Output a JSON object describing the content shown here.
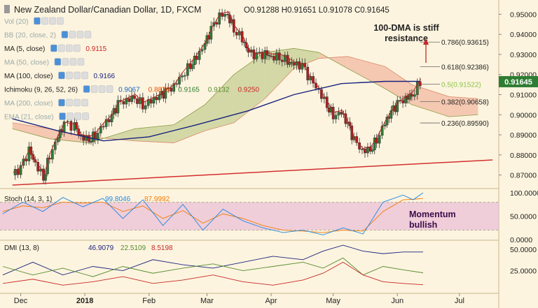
{
  "header": {
    "title": "New Zealand Dollar/Canadian Dollar, 1D, FXCM",
    "ohlc": "O0.91288  H0.91651  L0.91078  C0.91645"
  },
  "indicators": [
    {
      "label": "Vol (20)",
      "values": [],
      "faded": true
    },
    {
      "label": "BB (20, close, 2)",
      "values": [],
      "faded": true
    },
    {
      "label": "MA (5, close)",
      "values": [
        {
          "text": "0.9115",
          "color": "#c62828"
        }
      ],
      "faded": false
    },
    {
      "label": "MA (50, close)",
      "values": [],
      "faded": true
    },
    {
      "label": "MA (100, close)",
      "values": [
        {
          "text": "0.9166",
          "color": "#1a237e"
        }
      ],
      "faded": false
    },
    {
      "label": "Ichimoku (9, 26, 52, 26)",
      "values": [
        {
          "text": "0.9067",
          "color": "#1565c0"
        },
        {
          "text": "0.8876",
          "color": "#e65100"
        },
        {
          "text": "0.9165",
          "color": "#2e7d32"
        },
        {
          "text": "0.9132",
          "color": "#558b2f"
        },
        {
          "text": "0.9250",
          "color": "#c62828"
        }
      ],
      "faded": false
    },
    {
      "label": "MA (200, close)",
      "values": [],
      "faded": true
    },
    {
      "label": "EMA (21, close)",
      "values": [],
      "faded": true
    }
  ],
  "annotations": {
    "resistance_note": "100-DMA is stiff resistance",
    "momentum_note": "Momentum bullish"
  },
  "price_axis": {
    "ticks": [
      "0.95000",
      "0.94000",
      "0.93000",
      "0.92000",
      "0.91000",
      "0.90000",
      "0.89000",
      "0.88000",
      "0.87000"
    ],
    "current_price": "0.91645"
  },
  "x_axis": {
    "labels": [
      "Dec",
      "2018",
      "Feb",
      "Mar",
      "Apr",
      "May",
      "Jun",
      "Jul"
    ]
  },
  "stoch": {
    "label": "Stoch (14, 3, 1)",
    "k_value": "99.8046",
    "d_value": "87.9992",
    "ticks": [
      "100.0000",
      "50.0000",
      "0.0000"
    ]
  },
  "dmi": {
    "label": "DMI (13, 8)",
    "plus_value": "46.9079",
    "minus_value": "22.5109",
    "adx_value": "8.5198",
    "ticks": [
      "50.0000",
      "25.0000"
    ]
  },
  "colors": {
    "background": "#fdf4df",
    "up_candle": "#2e7d32",
    "down_candle": "#b71c1c",
    "ma100": "#1a237e",
    "ma5": "#b71c1c",
    "cloud_bull": "#c5cf94",
    "cloud_bear": "#f2b9a2",
    "trendline": "#d32f2f",
    "stoch_band": "#e8bcd6",
    "price_tag": "#2e7d32"
  },
  "chart_data": {
    "type": "candlestick",
    "title": "New Zealand Dollar/Canadian Dollar, 1D, FXCM",
    "ylim": [
      0.865,
      0.955
    ],
    "months": [
      "Dec",
      "2018",
      "Feb",
      "Mar",
      "Apr",
      "May",
      "Jun",
      "Jul"
    ],
    "close_path": [
      [
        "2017-11-27",
        0.87
      ],
      [
        "2017-12-01",
        0.873
      ],
      [
        "2017-12-05",
        0.882
      ],
      [
        "2017-12-08",
        0.876
      ],
      [
        "2017-12-12",
        0.869
      ],
      [
        "2017-12-15",
        0.88
      ],
      [
        "2017-12-19",
        0.889
      ],
      [
        "2017-12-22",
        0.895
      ],
      [
        "2017-12-27",
        0.894
      ],
      [
        "2017-12-30",
        0.889
      ],
      [
        "2018-01-03",
        0.888
      ],
      [
        "2018-01-06",
        0.89
      ],
      [
        "2018-01-10",
        0.895
      ],
      [
        "2018-01-14",
        0.899
      ],
      [
        "2018-01-17",
        0.905
      ],
      [
        "2018-01-21",
        0.907
      ],
      [
        "2018-01-25",
        0.909
      ],
      [
        "2018-01-29",
        0.905
      ],
      [
        "2018-02-02",
        0.907
      ],
      [
        "2018-02-06",
        0.909
      ],
      [
        "2018-02-09",
        0.911
      ],
      [
        "2018-02-13",
        0.914
      ],
      [
        "2018-02-17",
        0.92
      ],
      [
        "2018-02-21",
        0.925
      ],
      [
        "2018-02-24",
        0.929
      ],
      [
        "2018-02-28",
        0.935
      ],
      [
        "2018-03-03",
        0.942
      ],
      [
        "2018-03-07",
        0.949
      ],
      [
        "2018-03-11",
        0.95
      ],
      [
        "2018-03-14",
        0.943
      ],
      [
        "2018-03-18",
        0.938
      ],
      [
        "2018-03-21",
        0.931
      ],
      [
        "2018-03-25",
        0.929
      ],
      [
        "2018-03-29",
        0.93
      ],
      [
        "2018-04-01",
        0.929
      ],
      [
        "2018-04-05",
        0.929
      ],
      [
        "2018-04-09",
        0.927
      ],
      [
        "2018-04-12",
        0.925
      ],
      [
        "2018-04-16",
        0.924
      ],
      [
        "2018-04-20",
        0.917
      ],
      [
        "2018-04-24",
        0.912
      ],
      [
        "2018-04-28",
        0.905
      ],
      [
        "2018-05-01",
        0.9
      ],
      [
        "2018-05-05",
        0.901
      ],
      [
        "2018-05-08",
        0.895
      ],
      [
        "2018-05-11",
        0.887
      ],
      [
        "2018-05-15",
        0.882
      ],
      [
        "2018-05-19",
        0.883
      ],
      [
        "2018-05-22",
        0.888
      ],
      [
        "2018-05-26",
        0.896
      ],
      [
        "2018-05-29",
        0.901
      ],
      [
        "2018-06-01",
        0.905
      ],
      [
        "2018-06-05",
        0.908
      ],
      [
        "2018-06-08",
        0.91
      ],
      [
        "2018-06-12",
        0.9165
      ]
    ],
    "ma100": [
      [
        "2017-11-27",
        0.898
      ],
      [
        "2017-12-19",
        0.892
      ],
      [
        "2018-01-10",
        0.887
      ],
      [
        "2018-02-01",
        0.889
      ],
      [
        "2018-02-24",
        0.895
      ],
      [
        "2018-03-21",
        0.902
      ],
      [
        "2018-04-12",
        0.91
      ],
      [
        "2018-05-05",
        0.9155
      ],
      [
        "2018-05-26",
        0.9166
      ],
      [
        "2018-06-12",
        0.9166
      ]
    ],
    "cloud": [
      [
        "2017-11-27",
        0.896,
        0.893
      ],
      [
        "2017-12-15",
        0.893,
        0.888
      ],
      [
        "2018-01-03",
        0.889,
        0.886
      ],
      [
        "2018-01-25",
        0.887,
        0.893
      ],
      [
        "2018-02-13",
        0.886,
        0.895
      ],
      [
        "2018-02-28",
        0.892,
        0.905
      ],
      [
        "2018-03-14",
        0.896,
        0.92
      ],
      [
        "2018-03-29",
        0.908,
        0.931
      ],
      [
        "2018-04-12",
        0.923,
        0.933
      ],
      [
        "2018-04-24",
        0.928,
        0.931
      ],
      [
        "2018-05-08",
        0.929,
        0.923
      ],
      [
        "2018-05-26",
        0.924,
        0.913
      ],
      [
        "2018-06-08",
        0.915,
        0.905
      ],
      [
        "2018-06-26",
        0.909,
        0.899
      ],
      [
        "2018-07-10",
        0.908,
        0.9
      ]
    ],
    "fibonacci": [
      {
        "label": "0.786(0.93615)",
        "value": 0.93615
      },
      {
        "label": "0.618(0.92386)",
        "value": 0.92386
      },
      {
        "label": "0.5(0.91522)",
        "value": 0.91522
      },
      {
        "label": "0.382(0.90658)",
        "value": 0.90658
      },
      {
        "label": "0.236(0.89590)",
        "value": 0.8959
      }
    ],
    "trendline": [
      [
        "2017-11-27",
        0.865
      ],
      [
        "2018-07-17",
        0.8775
      ]
    ],
    "stoch_range": [
      0,
      100
    ],
    "stoch_bands": [
      20,
      80
    ],
    "stoch_k": [
      [
        0,
        55
      ],
      [
        10,
        80
      ],
      [
        20,
        60
      ],
      [
        30,
        90
      ],
      [
        40,
        70
      ],
      [
        50,
        88
      ],
      [
        60,
        45
      ],
      [
        70,
        85
      ],
      [
        80,
        30
      ],
      [
        90,
        75
      ],
      [
        100,
        20
      ],
      [
        110,
        65
      ],
      [
        120,
        40
      ],
      [
        130,
        25
      ],
      [
        140,
        15
      ],
      [
        150,
        20
      ],
      [
        160,
        10
      ],
      [
        170,
        25
      ],
      [
        180,
        12
      ],
      [
        190,
        80
      ],
      [
        200,
        95
      ],
      [
        205,
        85
      ],
      [
        210,
        100
      ]
    ],
    "stoch_d": [
      [
        0,
        60
      ],
      [
        10,
        72
      ],
      [
        20,
        68
      ],
      [
        30,
        80
      ],
      [
        40,
        78
      ],
      [
        50,
        80
      ],
      [
        60,
        60
      ],
      [
        70,
        72
      ],
      [
        80,
        45
      ],
      [
        90,
        62
      ],
      [
        100,
        35
      ],
      [
        110,
        55
      ],
      [
        120,
        45
      ],
      [
        130,
        30
      ],
      [
        140,
        20
      ],
      [
        150,
        18
      ],
      [
        160,
        15
      ],
      [
        170,
        20
      ],
      [
        180,
        18
      ],
      [
        190,
        60
      ],
      [
        200,
        85
      ],
      [
        205,
        86
      ],
      [
        210,
        88
      ]
    ],
    "dmi_range": [
      0,
      60
    ],
    "dmi_plus": [
      [
        0,
        20
      ],
      [
        15,
        35
      ],
      [
        30,
        20
      ],
      [
        45,
        30
      ],
      [
        60,
        25
      ],
      [
        75,
        38
      ],
      [
        90,
        32
      ],
      [
        105,
        28
      ],
      [
        120,
        35
      ],
      [
        135,
        42
      ],
      [
        150,
        38
      ],
      [
        160,
        48
      ],
      [
        170,
        55
      ],
      [
        180,
        48
      ],
      [
        190,
        45
      ],
      [
        200,
        47
      ],
      [
        210,
        47
      ]
    ],
    "dmi_minus": [
      [
        0,
        30
      ],
      [
        15,
        20
      ],
      [
        30,
        28
      ],
      [
        45,
        18
      ],
      [
        60,
        30
      ],
      [
        75,
        22
      ],
      [
        90,
        28
      ],
      [
        105,
        33
      ],
      [
        120,
        25
      ],
      [
        135,
        30
      ],
      [
        150,
        35
      ],
      [
        160,
        28
      ],
      [
        170,
        40
      ],
      [
        180,
        20
      ],
      [
        190,
        30
      ],
      [
        200,
        26
      ],
      [
        210,
        22.5
      ]
    ],
    "dmi_adx": [
      [
        0,
        10
      ],
      [
        15,
        15
      ],
      [
        30,
        8
      ],
      [
        45,
        12
      ],
      [
        60,
        18
      ],
      [
        75,
        10
      ],
      [
        90,
        14
      ],
      [
        105,
        20
      ],
      [
        120,
        12
      ],
      [
        135,
        8
      ],
      [
        150,
        14
      ],
      [
        160,
        22
      ],
      [
        170,
        35
      ],
      [
        180,
        20
      ],
      [
        190,
        12
      ],
      [
        200,
        10
      ],
      [
        210,
        8.5
      ]
    ]
  }
}
